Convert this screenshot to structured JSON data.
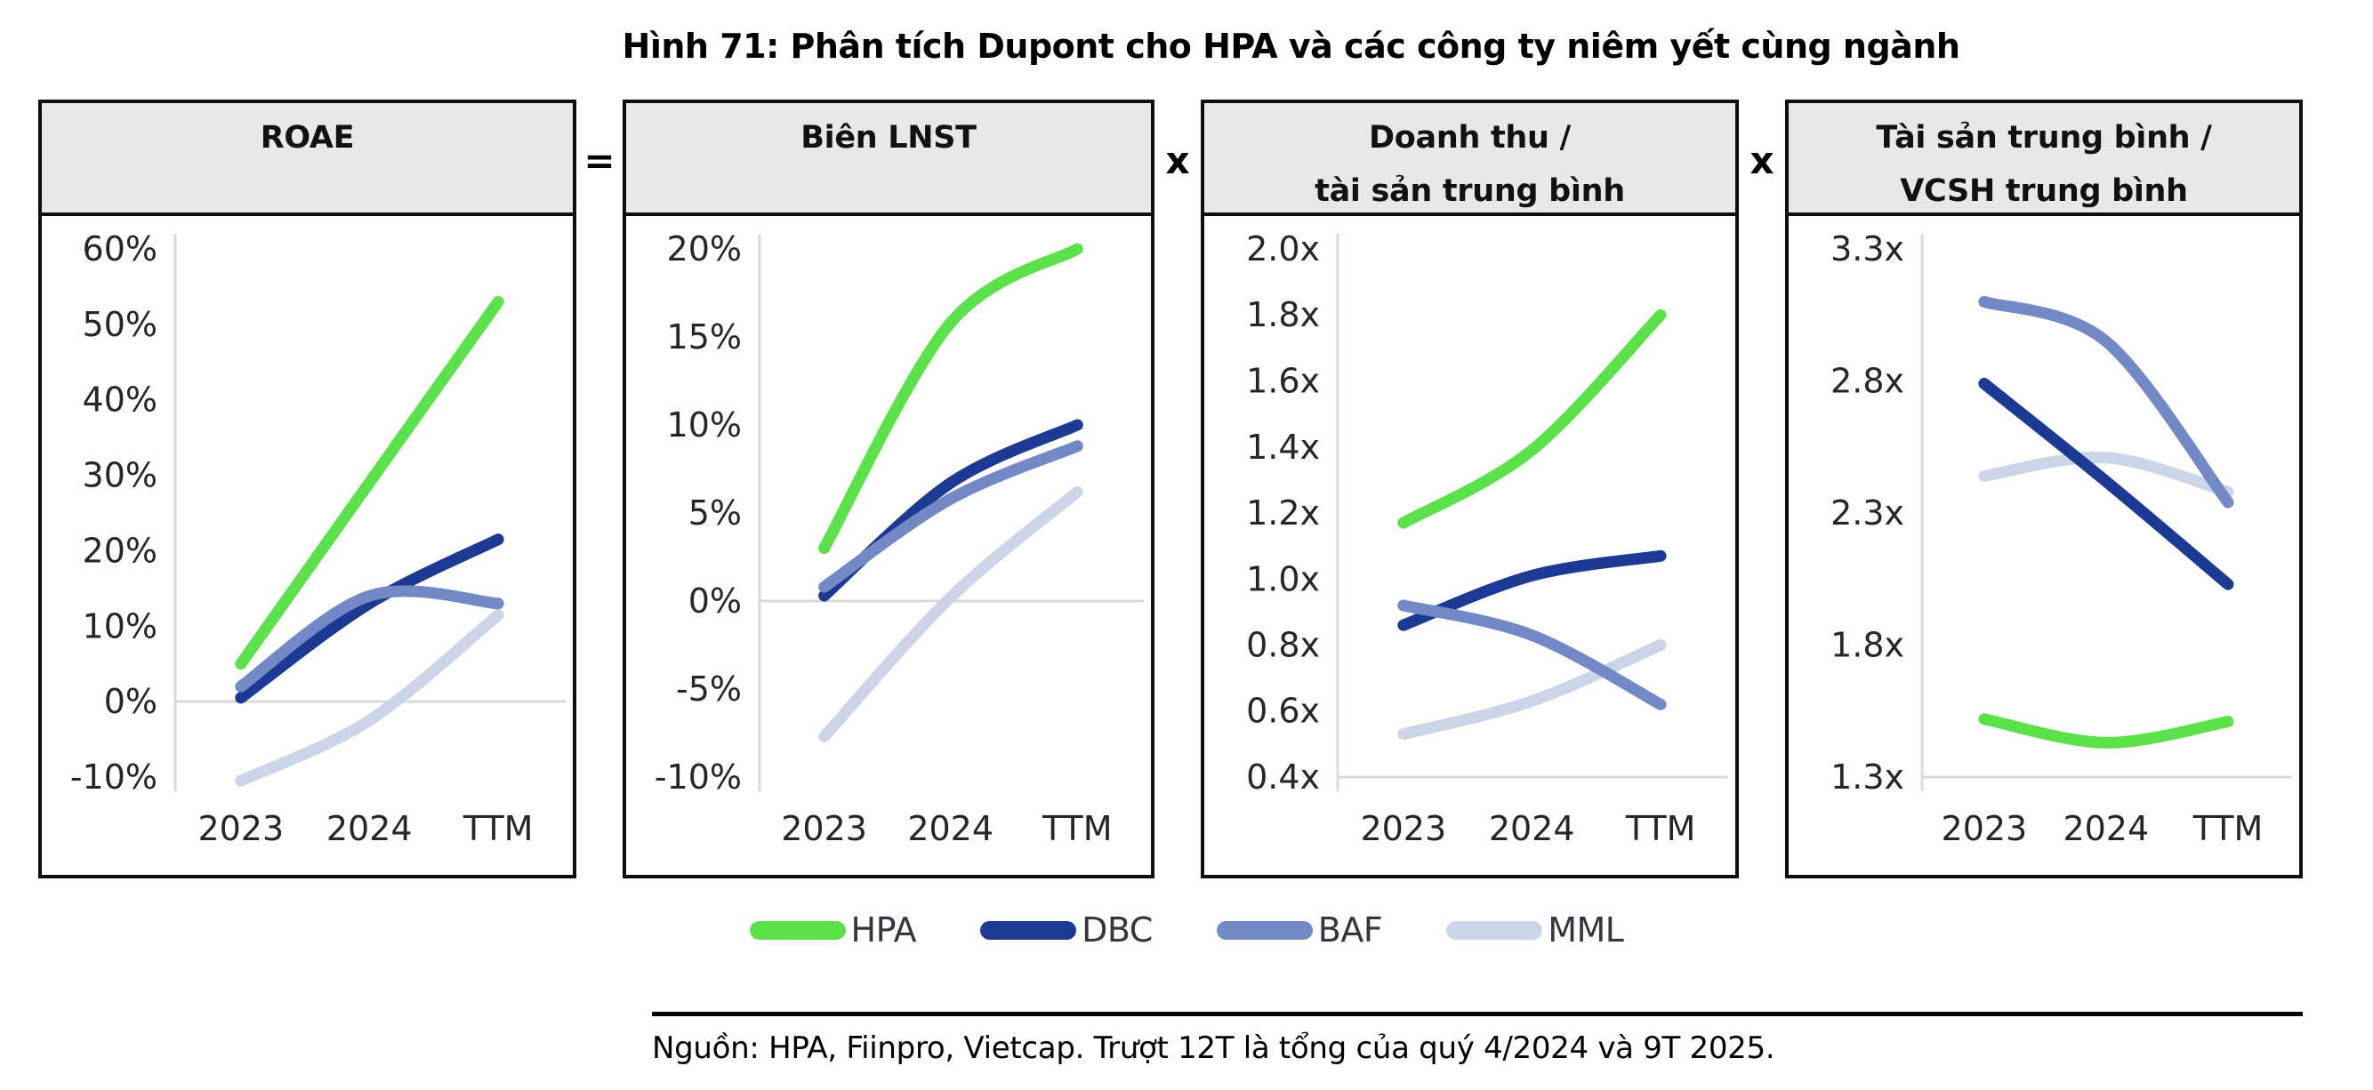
{
  "title": "Hình 71: Phân tích Dupont cho HPA và các công ty niêm yết cùng ngành",
  "operators": [
    "=",
    "x",
    "x"
  ],
  "legend": [
    {
      "label": "HPA",
      "color": "#5be24a"
    },
    {
      "label": "DBC",
      "color": "#1c3a94"
    },
    {
      "label": "BAF",
      "color": "#7289c6"
    },
    {
      "label": "MML",
      "color": "#ccd5e8"
    }
  ],
  "source": "Nguồn: HPA, Fiinpro, Vietcap. Trượt 12T là tổng của quý 4/2024 và 9T 2025.",
  "style_colors": {
    "header_bg": "#e8e8e8",
    "panel_border": "#0e0e0e",
    "axis_gray": "#d9d9d9"
  },
  "chart_data": [
    {
      "type": "line",
      "header": [
        "ROAE"
      ],
      "categories": [
        "2023",
        "2024",
        "TTM"
      ],
      "yticks": [
        "60%",
        "50%",
        "40%",
        "30%",
        "20%",
        "10%",
        "0%",
        "-10%"
      ],
      "ytick_values": [
        60,
        50,
        40,
        30,
        20,
        10,
        0,
        -10
      ],
      "ylim": [
        -10,
        60
      ],
      "zero_line": true,
      "baseline": false,
      "grid": false,
      "series": [
        {
          "name": "HPA",
          "values": [
            5,
            29,
            53
          ]
        },
        {
          "name": "DBC",
          "values": [
            0.5,
            13,
            21.5
          ]
        },
        {
          "name": "BAF",
          "values": [
            2,
            14,
            13
          ]
        },
        {
          "name": "MML",
          "values": [
            -10.5,
            -2.5,
            11.5
          ]
        }
      ]
    },
    {
      "type": "line",
      "header": [
        "Biên LNST"
      ],
      "categories": [
        "2023",
        "2024",
        "TTM"
      ],
      "yticks": [
        "20%",
        "15%",
        "10%",
        "5%",
        "0%",
        "-5%",
        "-10%"
      ],
      "ytick_values": [
        20,
        15,
        10,
        5,
        0,
        -5,
        -10
      ],
      "ylim": [
        -10,
        20
      ],
      "zero_line": true,
      "baseline": false,
      "grid": false,
      "series": [
        {
          "name": "HPA",
          "values": [
            3,
            15.8,
            20
          ]
        },
        {
          "name": "DBC",
          "values": [
            0.3,
            6.7,
            10
          ]
        },
        {
          "name": "BAF",
          "values": [
            0.8,
            5.8,
            8.8
          ]
        },
        {
          "name": "MML",
          "values": [
            -7.7,
            0.2,
            6.2
          ]
        }
      ]
    },
    {
      "type": "line",
      "header": [
        "Doanh thu /",
        "tài sản trung bình"
      ],
      "categories": [
        "2023",
        "2024",
        "TTM"
      ],
      "yticks": [
        "2.0x",
        "1.8x",
        "1.6x",
        "1.4x",
        "1.2x",
        "1.0x",
        "0.8x",
        "0.6x",
        "0.4x"
      ],
      "ytick_values": [
        2.0,
        1.8,
        1.6,
        1.4,
        1.2,
        1.0,
        0.8,
        0.6,
        0.4
      ],
      "ylim": [
        0.4,
        2.0
      ],
      "zero_line": false,
      "baseline": true,
      "grid": false,
      "series": [
        {
          "name": "HPA",
          "values": [
            1.17,
            1.39,
            1.8
          ]
        },
        {
          "name": "DBC",
          "values": [
            0.86,
            1.01,
            1.07
          ]
        },
        {
          "name": "BAF",
          "values": [
            0.92,
            0.83,
            0.62
          ]
        },
        {
          "name": "MML",
          "values": [
            0.53,
            0.63,
            0.8
          ]
        }
      ]
    },
    {
      "type": "line",
      "header": [
        "Tài sản trung bình /",
        "VCSH trung bình"
      ],
      "categories": [
        "2023",
        "2024",
        "TTM"
      ],
      "yticks": [
        "3.3x",
        "2.8x",
        "2.3x",
        "1.8x",
        "1.3x"
      ],
      "ytick_values": [
        3.3,
        2.8,
        2.3,
        1.8,
        1.3
      ],
      "ylim": [
        1.3,
        3.3
      ],
      "zero_line": false,
      "baseline": true,
      "grid": false,
      "series": [
        {
          "name": "HPA",
          "values": [
            1.52,
            1.43,
            1.51
          ]
        },
        {
          "name": "DBC",
          "values": [
            2.79,
            2.42,
            2.03
          ]
        },
        {
          "name": "BAF",
          "values": [
            3.1,
            2.95,
            2.34
          ]
        },
        {
          "name": "MML",
          "values": [
            2.44,
            2.51,
            2.38
          ]
        }
      ]
    }
  ]
}
